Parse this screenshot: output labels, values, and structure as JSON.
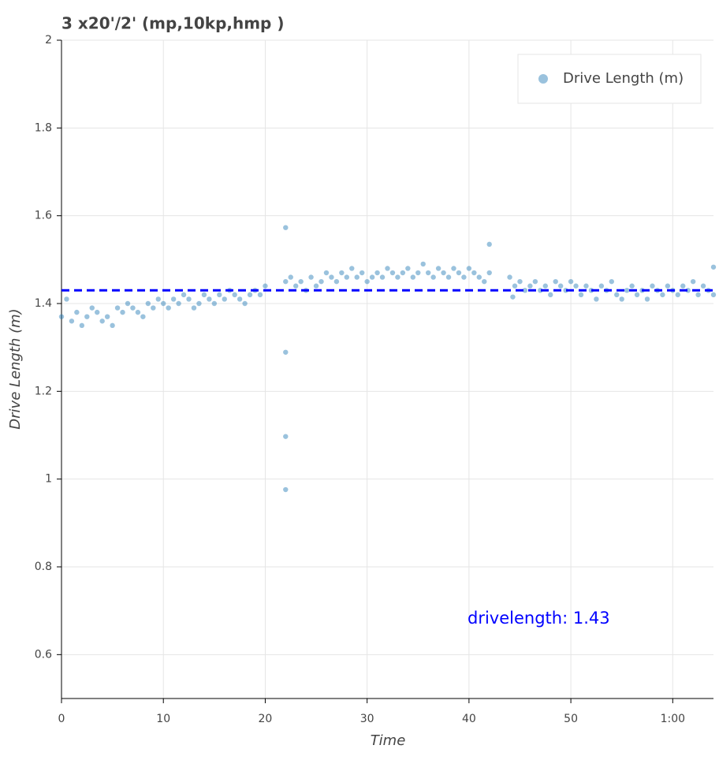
{
  "chart_data": {
    "type": "scatter",
    "title": "3 x20'/2' (mp,10kp,hmp )",
    "x_label": "Time",
    "y_label": "Drive Length (m)",
    "xlim": [
      0,
      64
    ],
    "ylim": [
      0.5,
      2
    ],
    "xticks": [
      0,
      10,
      20,
      30,
      40,
      50,
      {
        "value": 60,
        "label": "1:00"
      }
    ],
    "yticks": [
      0.6,
      0.8,
      {
        "value": 1.0,
        "label": "1"
      },
      1.2,
      1.4,
      1.6,
      1.8,
      {
        "value": 2.0,
        "label": "2"
      }
    ],
    "grid": true,
    "legend": "top-right",
    "mean_line": 1.43,
    "mean_line_color": "#0000ff",
    "annotation": "drivelength:   1.43",
    "series": [
      {
        "name": "Drive Length (m)",
        "color": "#1f77b4",
        "x": [
          0,
          0.5,
          1,
          1.5,
          2,
          2.5,
          3,
          3.5,
          4,
          4.5,
          5,
          5.5,
          6,
          6.5,
          7,
          7.5,
          8,
          8.5,
          9,
          9.5,
          10,
          10.5,
          11,
          11.5,
          12,
          12.5,
          13,
          13.5,
          14,
          14.5,
          15,
          15.5,
          16,
          16.5,
          17,
          17.5,
          18,
          18.5,
          19,
          19.5,
          20,
          22,
          22.5,
          23,
          23.5,
          24,
          24.5,
          25,
          25.5,
          26,
          26.5,
          27,
          27.5,
          28,
          28.5,
          29,
          29.5,
          30,
          30.5,
          31,
          31.5,
          32,
          32.5,
          33,
          33.5,
          34,
          34.5,
          35,
          35.5,
          36,
          36.5,
          37,
          37.5,
          38,
          38.5,
          39,
          39.5,
          40,
          40.5,
          41,
          41.5,
          42,
          44,
          44.5,
          45,
          45.5,
          46,
          46.5,
          47,
          47.5,
          48,
          48.5,
          49,
          49.5,
          50,
          50.5,
          51,
          51.5,
          52,
          52.5,
          53,
          53.5,
          54,
          54.5,
          55,
          55.5,
          56,
          56.5,
          57,
          57.5,
          58,
          58.5,
          59,
          59.5,
          60,
          60.5,
          61,
          61.5,
          62,
          62.5,
          63,
          63.5,
          64,
          22,
          22,
          22,
          22,
          42,
          64,
          44.3
        ],
        "values": [
          1.37,
          1.41,
          1.36,
          1.38,
          1.35,
          1.37,
          1.39,
          1.38,
          1.36,
          1.37,
          1.35,
          1.39,
          1.38,
          1.4,
          1.39,
          1.38,
          1.37,
          1.4,
          1.39,
          1.41,
          1.4,
          1.39,
          1.41,
          1.4,
          1.42,
          1.41,
          1.39,
          1.4,
          1.42,
          1.41,
          1.4,
          1.42,
          1.41,
          1.43,
          1.42,
          1.41,
          1.4,
          1.42,
          1.43,
          1.42,
          1.44,
          1.45,
          1.46,
          1.44,
          1.45,
          1.43,
          1.46,
          1.44,
          1.45,
          1.47,
          1.46,
          1.45,
          1.47,
          1.46,
          1.48,
          1.46,
          1.47,
          1.45,
          1.46,
          1.47,
          1.46,
          1.48,
          1.47,
          1.46,
          1.47,
          1.48,
          1.46,
          1.47,
          1.49,
          1.47,
          1.46,
          1.48,
          1.47,
          1.46,
          1.48,
          1.47,
          1.46,
          1.48,
          1.47,
          1.46,
          1.45,
          1.47,
          1.46,
          1.44,
          1.45,
          1.43,
          1.44,
          1.45,
          1.43,
          1.44,
          1.42,
          1.45,
          1.44,
          1.43,
          1.45,
          1.44,
          1.42,
          1.44,
          1.43,
          1.41,
          1.44,
          1.43,
          1.45,
          1.42,
          1.41,
          1.43,
          1.44,
          1.42,
          1.43,
          1.41,
          1.44,
          1.43,
          1.42,
          1.44,
          1.43,
          1.42,
          1.44,
          1.43,
          1.45,
          1.42,
          1.44,
          1.43,
          1.42,
          1.573,
          1.289,
          1.097,
          0.976,
          1.535,
          1.483,
          1.415
        ]
      }
    ]
  }
}
